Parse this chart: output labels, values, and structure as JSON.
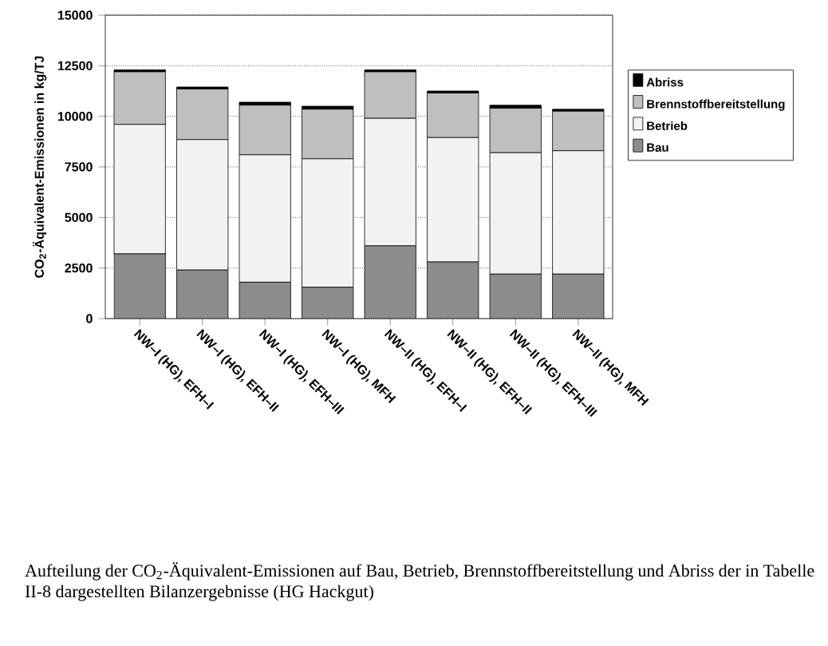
{
  "chart_data": {
    "type": "bar",
    "stacked": true,
    "ylabel": "CO$_{2}$-Äquivalent-Emissionen in kg/TJ",
    "categories": [
      "NW–I (HG), EFH–I",
      "NW–I (HG), EFH–II",
      "NW–I (HG), EFH–III",
      "NW–I (HG), MFH",
      "NW–II (HG), EFH–I",
      "NW–II (HG), EFH–II",
      "NW–II (HG), EFH–III",
      "NW–II (HG), MFH"
    ],
    "series": [
      {
        "name": "Bau",
        "color": "#8c8c8c",
        "values": [
          3200,
          2400,
          1800,
          1550,
          3600,
          2800,
          2200,
          2200
        ]
      },
      {
        "name": "Betrieb",
        "color": "#f2f2f2",
        "values": [
          6400,
          6450,
          6300,
          6350,
          6300,
          6150,
          6000,
          6100
        ]
      },
      {
        "name": "Brennstoffbereitstellung",
        "color": "#bfbfbf",
        "values": [
          2600,
          2500,
          2450,
          2450,
          2300,
          2200,
          2200,
          1950
        ]
      },
      {
        "name": "Abriss",
        "color": "#000000",
        "values": [
          100,
          100,
          150,
          150,
          100,
          100,
          150,
          100
        ]
      }
    ],
    "ylim": [
      0,
      15000
    ],
    "yticks": [
      0,
      2500,
      5000,
      7500,
      10000,
      12500,
      15000
    ],
    "grid": "y",
    "legend": "right",
    "annotations": [
      "Aufteilung der CO$_{2}$-Äquivalent-Emissionen auf Bau, Betrieb, Brennstoffbereitstellung und Abriss der in Tabelle II-8 dargestellten Bilanzergebnisse (HG Hackgut)"
    ]
  }
}
